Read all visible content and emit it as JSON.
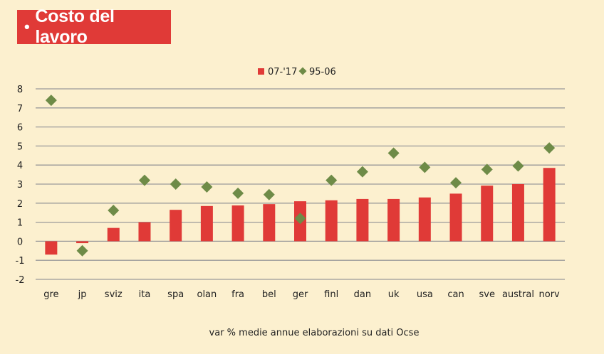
{
  "title": "Costo del lavoro",
  "title_bullet": "•",
  "source_note": "var % medie annue elaborazioni su dati Ocse",
  "colors": {
    "bar": "#e03a37",
    "marker": "#6e8b47",
    "grid": "#9a9a9a",
    "title_bg": "#e03a37"
  },
  "chart_data": {
    "type": "bar",
    "categories": [
      "gre",
      "jp",
      "sviz",
      "ita",
      "spa",
      "olan",
      "fra",
      "bel",
      "ger",
      "finl",
      "dan",
      "uk",
      "usa",
      "can",
      "sve",
      "austral",
      "norv"
    ],
    "series": [
      {
        "name": "07-'17",
        "type": "bar",
        "values": [
          -0.7,
          -0.1,
          0.7,
          1.0,
          1.65,
          1.85,
          1.88,
          1.95,
          2.1,
          2.15,
          2.22,
          2.22,
          2.3,
          2.5,
          2.92,
          3.0,
          3.85
        ]
      },
      {
        "name": "95-06",
        "type": "scatter",
        "values": [
          7.4,
          -0.5,
          1.62,
          3.2,
          3.0,
          2.85,
          2.52,
          2.45,
          1.2,
          3.2,
          3.65,
          4.63,
          3.88,
          3.07,
          3.77,
          3.95,
          4.9
        ]
      }
    ],
    "ylim": [
      -2,
      8
    ],
    "yticks": [
      "8",
      "7",
      "6",
      "5",
      "4",
      "3",
      "2",
      "1",
      "0",
      "-1",
      "-2"
    ],
    "legend_position": "top-center",
    "grid": true
  }
}
